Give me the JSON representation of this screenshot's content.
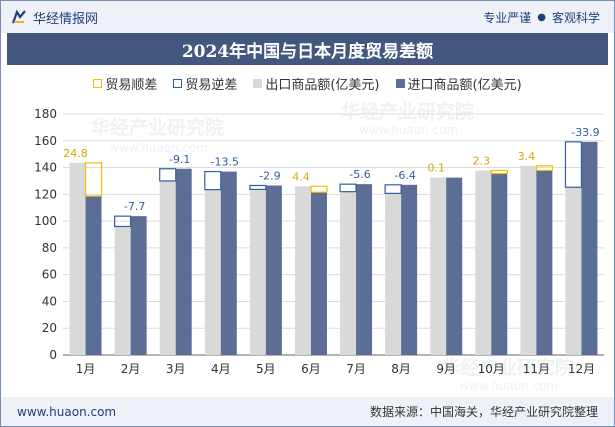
{
  "header": {
    "brand_name": "华经情报网",
    "tagline_left": "专业严谨",
    "tagline_right": "客观科学"
  },
  "colors": {
    "title_bg": "#43577f",
    "export": "#d9d9d9",
    "import": "#5c6d96",
    "surplus": "#f0c000",
    "deficit": "#2e5f9e"
  },
  "watermarks": [
    "华经产业研究院",
    "www.huaon.com"
  ],
  "chart_data": {
    "type": "bar",
    "title": "2024年中国与日本月度贸易差额",
    "categories": [
      "1月",
      "2月",
      "3月",
      "4月",
      "5月",
      "6月",
      "7月",
      "8月",
      "9月",
      "10月",
      "11月",
      "12月"
    ],
    "ylim": [
      0,
      180
    ],
    "yticks": [
      0,
      20,
      40,
      60,
      80,
      100,
      120,
      140,
      160,
      180
    ],
    "grid": true,
    "legend_position": "top",
    "series": [
      {
        "name": "出口商品额(亿美元)",
        "values": [
          143.5,
          96.0,
          130.0,
          123.5,
          123.7,
          126.0,
          122.0,
          120.7,
          132.6,
          137.8,
          141.3,
          125.3
        ]
      },
      {
        "name": "进口商品额(亿美元)",
        "values": [
          118.7,
          103.7,
          139.1,
          137.0,
          126.6,
          121.6,
          127.6,
          127.1,
          132.5,
          135.5,
          137.9,
          159.2
        ]
      }
    ],
    "balance": {
      "surplus_name": "贸易顺差",
      "deficit_name": "贸易逆差",
      "labels": [
        "24.8",
        "-7.7",
        "-9.1",
        "-13.5",
        "-2.9",
        "4.4",
        "-5.6",
        "-6.4",
        "0.1",
        "2.3",
        "3.4",
        "-33.9"
      ]
    }
  },
  "footer": {
    "website": "www.huaon.com",
    "source": "数据来源：中国海关，华经产业研究院整理"
  }
}
